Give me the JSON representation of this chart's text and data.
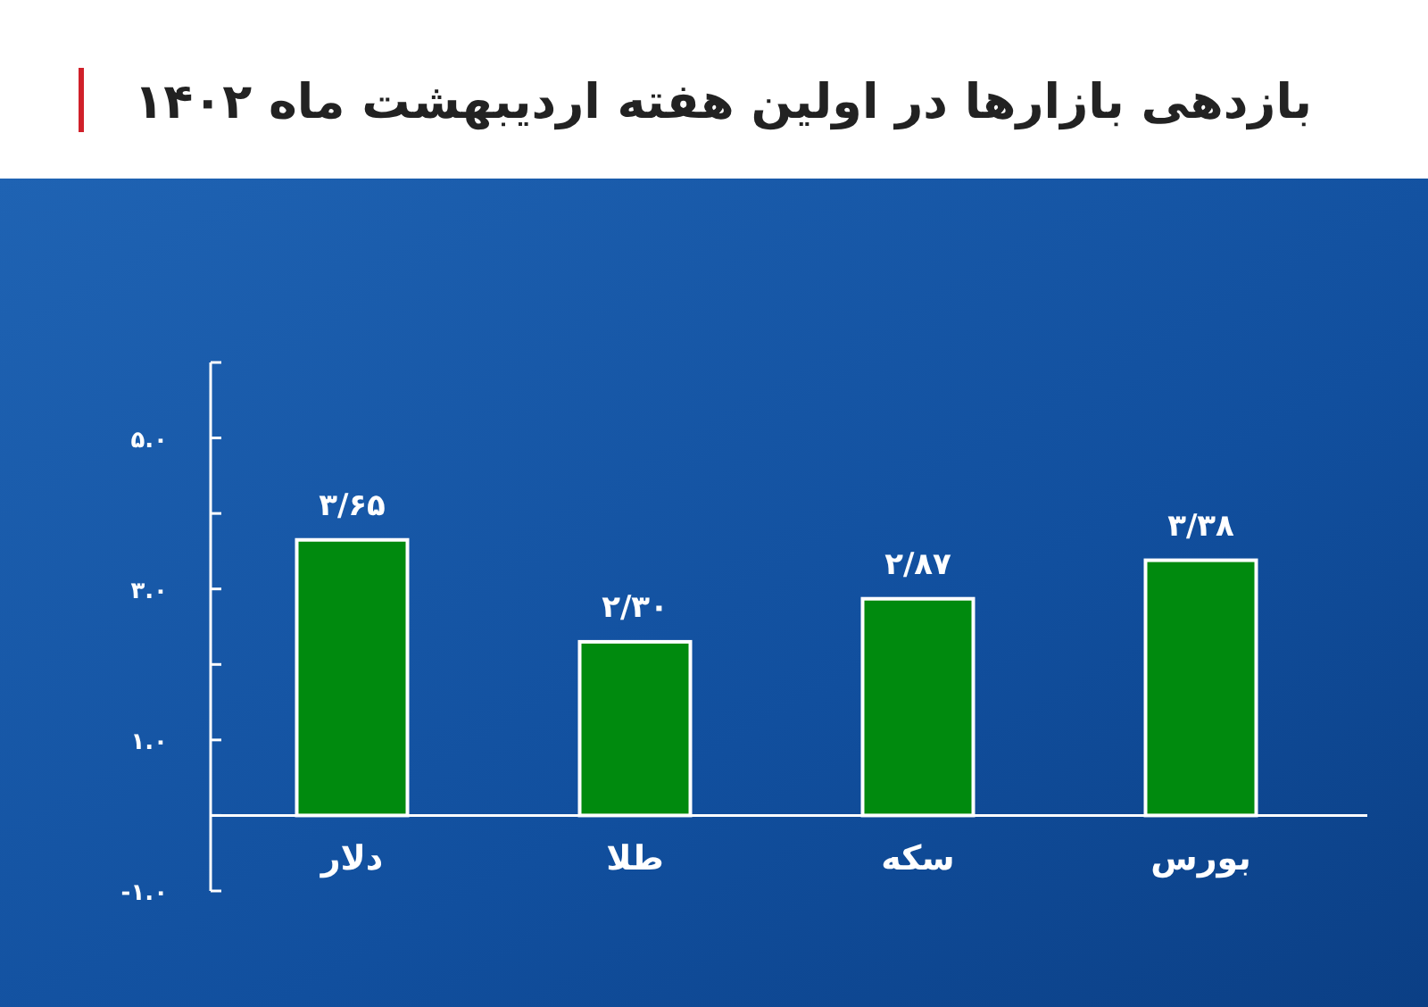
{
  "chart_data": {
    "type": "bar",
    "title": "بازدهی بازارها در اولین هفته اردیبهشت ماه ۱۴۰۲",
    "categories": [
      "دلار",
      "طلا",
      "سکه",
      "بورس"
    ],
    "values": [
      3.65,
      2.3,
      2.87,
      3.38
    ],
    "value_labels": [
      "۳/۶۵",
      "۲/۳۰",
      "۲/۸۷",
      "۳/۳۸"
    ],
    "color": "#008a0e",
    "ylim": [
      -1,
      6
    ],
    "yticks": [
      {
        "value": -1,
        "label": "-۱.۰"
      },
      {
        "value": 0,
        "label": null
      },
      {
        "value": 1,
        "label": "۱.۰"
      },
      {
        "value": 2,
        "label": null
      },
      {
        "value": 3,
        "label": "۳.۰"
      },
      {
        "value": 4,
        "label": null
      },
      {
        "value": 5,
        "label": "۵.۰"
      },
      {
        "value": 6,
        "label": null
      }
    ],
    "grid": false
  }
}
